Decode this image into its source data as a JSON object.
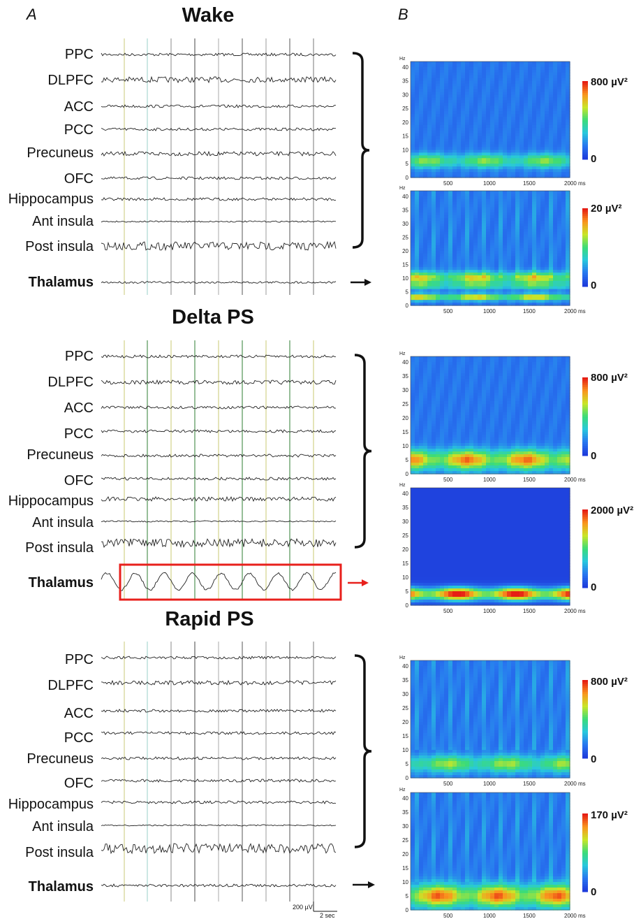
{
  "panels": {
    "a": "A",
    "b": "B"
  },
  "sections": [
    {
      "title": "Wake",
      "channels": [
        "PPC",
        "DLPFC",
        "ACC",
        "PCC",
        "Precuneus",
        "OFC",
        "Hippocampus",
        "Ant insula",
        "Post insula"
      ],
      "thalamus": "Thalamus",
      "spectrograms": [
        {
          "colorbar_max": "800 µV²",
          "colorbar_min": "0"
        },
        {
          "colorbar_max": "20 µV²",
          "colorbar_min": "0"
        }
      ]
    },
    {
      "title": "Delta PS",
      "channels": [
        "PPC",
        "DLPFC",
        "ACC",
        "PCC",
        "Precuneus",
        "OFC",
        "Hippocampus",
        "Ant insula",
        "Post insula"
      ],
      "thalamus": "Thalamus",
      "spectrograms": [
        {
          "colorbar_max": "800 µV²",
          "colorbar_min": "0"
        },
        {
          "colorbar_max": "2000 µV²",
          "colorbar_min": "0"
        }
      ]
    },
    {
      "title": "Rapid PS",
      "channels": [
        "PPC",
        "DLPFC",
        "ACC",
        "PCC",
        "Precuneus",
        "OFC",
        "Hippocampus",
        "Ant insula",
        "Post insula"
      ],
      "thalamus": "Thalamus",
      "spectrograms": [
        {
          "colorbar_max": "800 µV²",
          "colorbar_min": "0"
        },
        {
          "colorbar_max": "170 µV²",
          "colorbar_min": "0"
        }
      ]
    }
  ],
  "spectrogram_axes": {
    "y_unit": "Hz",
    "y_ticks": [
      "0",
      "5",
      "10",
      "15",
      "20",
      "25",
      "30",
      "35",
      "40"
    ],
    "x_ticks": [
      "500",
      "1000",
      "1500",
      "2000 ms"
    ]
  },
  "scale_bar": {
    "voltage": "200 µV",
    "time": "2 sec"
  },
  "colors": {
    "highlight": "#e8201c",
    "trace": "#222222",
    "spectro_base": "#1e63e6"
  }
}
